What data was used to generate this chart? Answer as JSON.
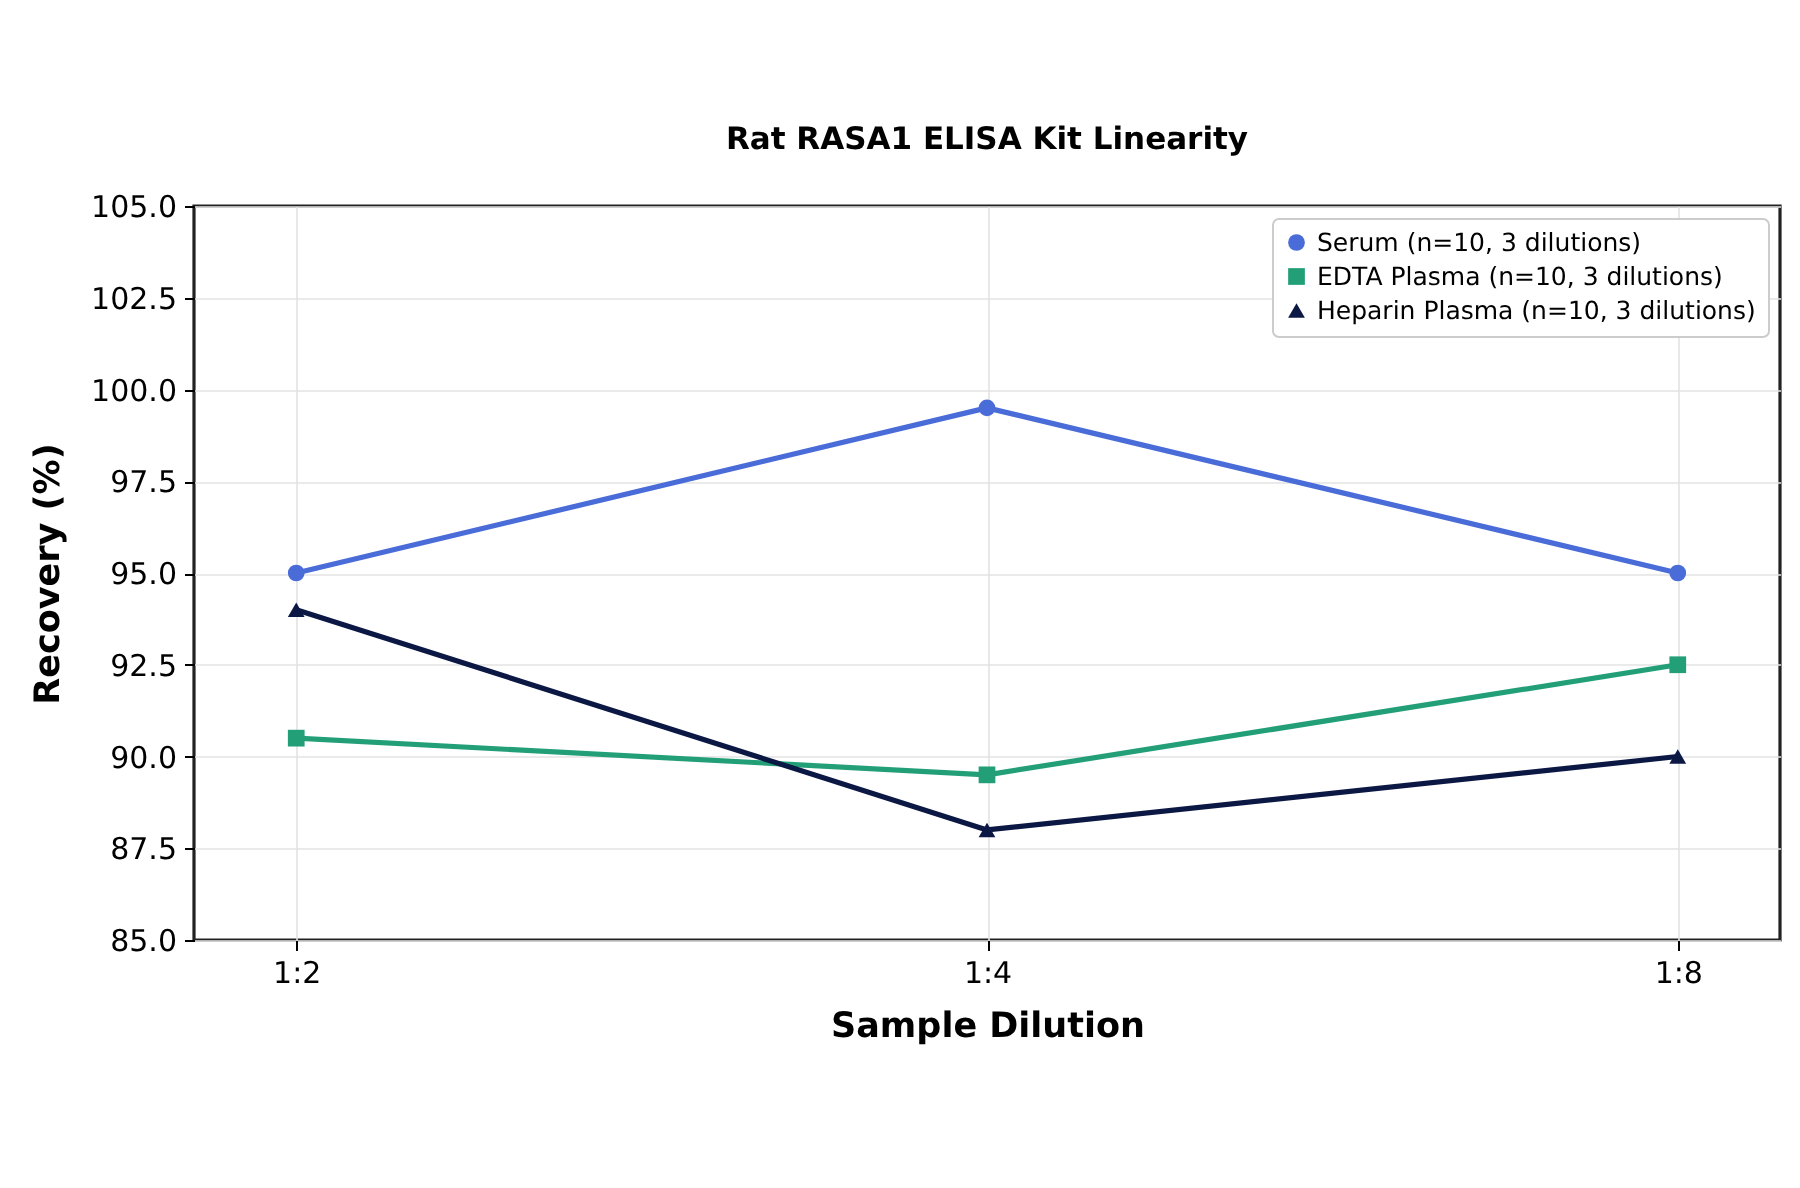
{
  "chart_data": {
    "type": "line",
    "title": "Rat RASA1 ELISA Kit Linearity",
    "xlabel": "Sample Dilution",
    "ylabel": "Recovery (%)",
    "categories": [
      "1:2",
      "1:4",
      "1:8"
    ],
    "series": [
      {
        "name": "Serum (n=10, 3 dilutions)",
        "color": "#4a6cd8",
        "marker": "circle",
        "values": [
          95.0,
          99.5,
          95.0
        ]
      },
      {
        "name": "EDTA Plasma (n=10, 3 dilutions)",
        "color": "#239f78",
        "marker": "square",
        "values": [
          90.5,
          89.5,
          92.5
        ]
      },
      {
        "name": "Heparin Plasma (n=10, 3 dilutions)",
        "color": "#0c1844",
        "marker": "triangle",
        "values": [
          94.0,
          88.0,
          90.0
        ]
      }
    ],
    "ylim": [
      85.0,
      105.0
    ],
    "yticks": [
      {
        "value": 85,
        "label": "85.0"
      },
      {
        "value": 87.5,
        "label": "87.5"
      },
      {
        "value": 90,
        "label": "90.0"
      },
      {
        "value": 92.5,
        "label": "92.5"
      },
      {
        "value": 95,
        "label": "95.0"
      },
      {
        "value": 97.5,
        "label": "97.5"
      },
      {
        "value": 100,
        "label": "100.0"
      },
      {
        "value": 102.5,
        "label": "102.5"
      },
      {
        "value": 105,
        "label": "105.0"
      }
    ],
    "grid": true,
    "legend": "top right"
  }
}
